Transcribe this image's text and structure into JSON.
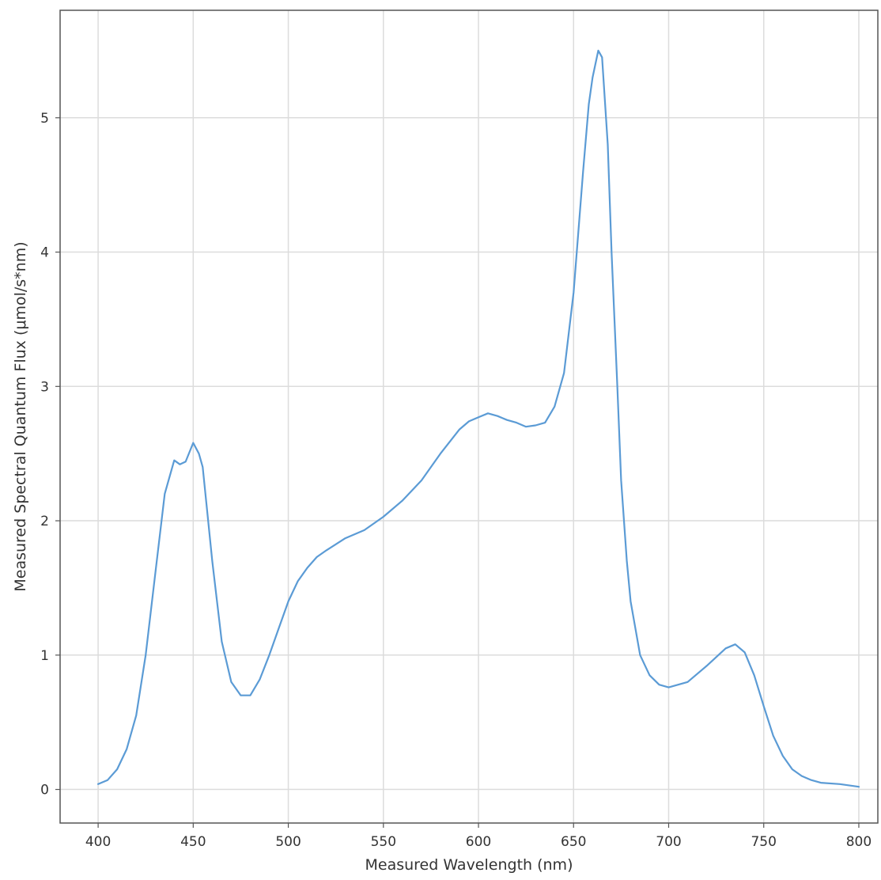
{
  "chart_data": {
    "type": "line",
    "title": "",
    "xlabel": "Measured Wavelength (nm)",
    "ylabel": "Measured Spectral Quantum Flux (μmol/s*nm)",
    "xlim": [
      380,
      810
    ],
    "ylim": [
      -0.25,
      5.8
    ],
    "grid": true,
    "x_ticks": [
      400,
      450,
      500,
      550,
      600,
      650,
      700,
      750,
      800
    ],
    "x_tick_labels": [
      "400",
      "450",
      "500",
      "550",
      "600",
      "650",
      "700",
      "750",
      "800"
    ],
    "y_ticks": [
      0,
      1,
      2,
      3,
      4,
      5
    ],
    "y_tick_labels": [
      "0",
      "1",
      "2",
      "3",
      "4",
      "5"
    ],
    "line_color": "#5b9bd5",
    "series": [
      {
        "x": [
          400,
          405,
          410,
          415,
          420,
          425,
          430,
          435,
          440,
          443,
          446,
          450,
          453,
          455,
          460,
          465,
          470,
          475,
          480,
          485,
          490,
          495,
          500,
          505,
          510,
          515,
          520,
          530,
          540,
          550,
          560,
          570,
          580,
          590,
          595,
          600,
          605,
          610,
          615,
          620,
          625,
          630,
          635,
          640,
          645,
          650,
          655,
          658,
          660,
          663,
          665,
          668,
          670,
          673,
          675,
          678,
          680,
          685,
          690,
          695,
          700,
          710,
          720,
          730,
          735,
          740,
          745,
          750,
          755,
          760,
          765,
          770,
          775,
          780,
          790,
          800
        ],
        "y": [
          0.04,
          0.07,
          0.15,
          0.3,
          0.55,
          1.0,
          1.6,
          2.2,
          2.45,
          2.42,
          2.44,
          2.58,
          2.5,
          2.4,
          1.7,
          1.1,
          0.8,
          0.7,
          0.7,
          0.82,
          1.0,
          1.2,
          1.4,
          1.55,
          1.65,
          1.73,
          1.78,
          1.87,
          1.93,
          2.03,
          2.15,
          2.3,
          2.5,
          2.68,
          2.74,
          2.77,
          2.8,
          2.78,
          2.75,
          2.73,
          2.7,
          2.71,
          2.73,
          2.85,
          3.1,
          3.7,
          4.6,
          5.1,
          5.3,
          5.5,
          5.45,
          4.8,
          4.0,
          3.0,
          2.3,
          1.7,
          1.4,
          1.0,
          0.85,
          0.78,
          0.76,
          0.8,
          0.92,
          1.05,
          1.08,
          1.02,
          0.85,
          0.62,
          0.4,
          0.25,
          0.15,
          0.1,
          0.07,
          0.05,
          0.04,
          0.02
        ]
      }
    ]
  }
}
